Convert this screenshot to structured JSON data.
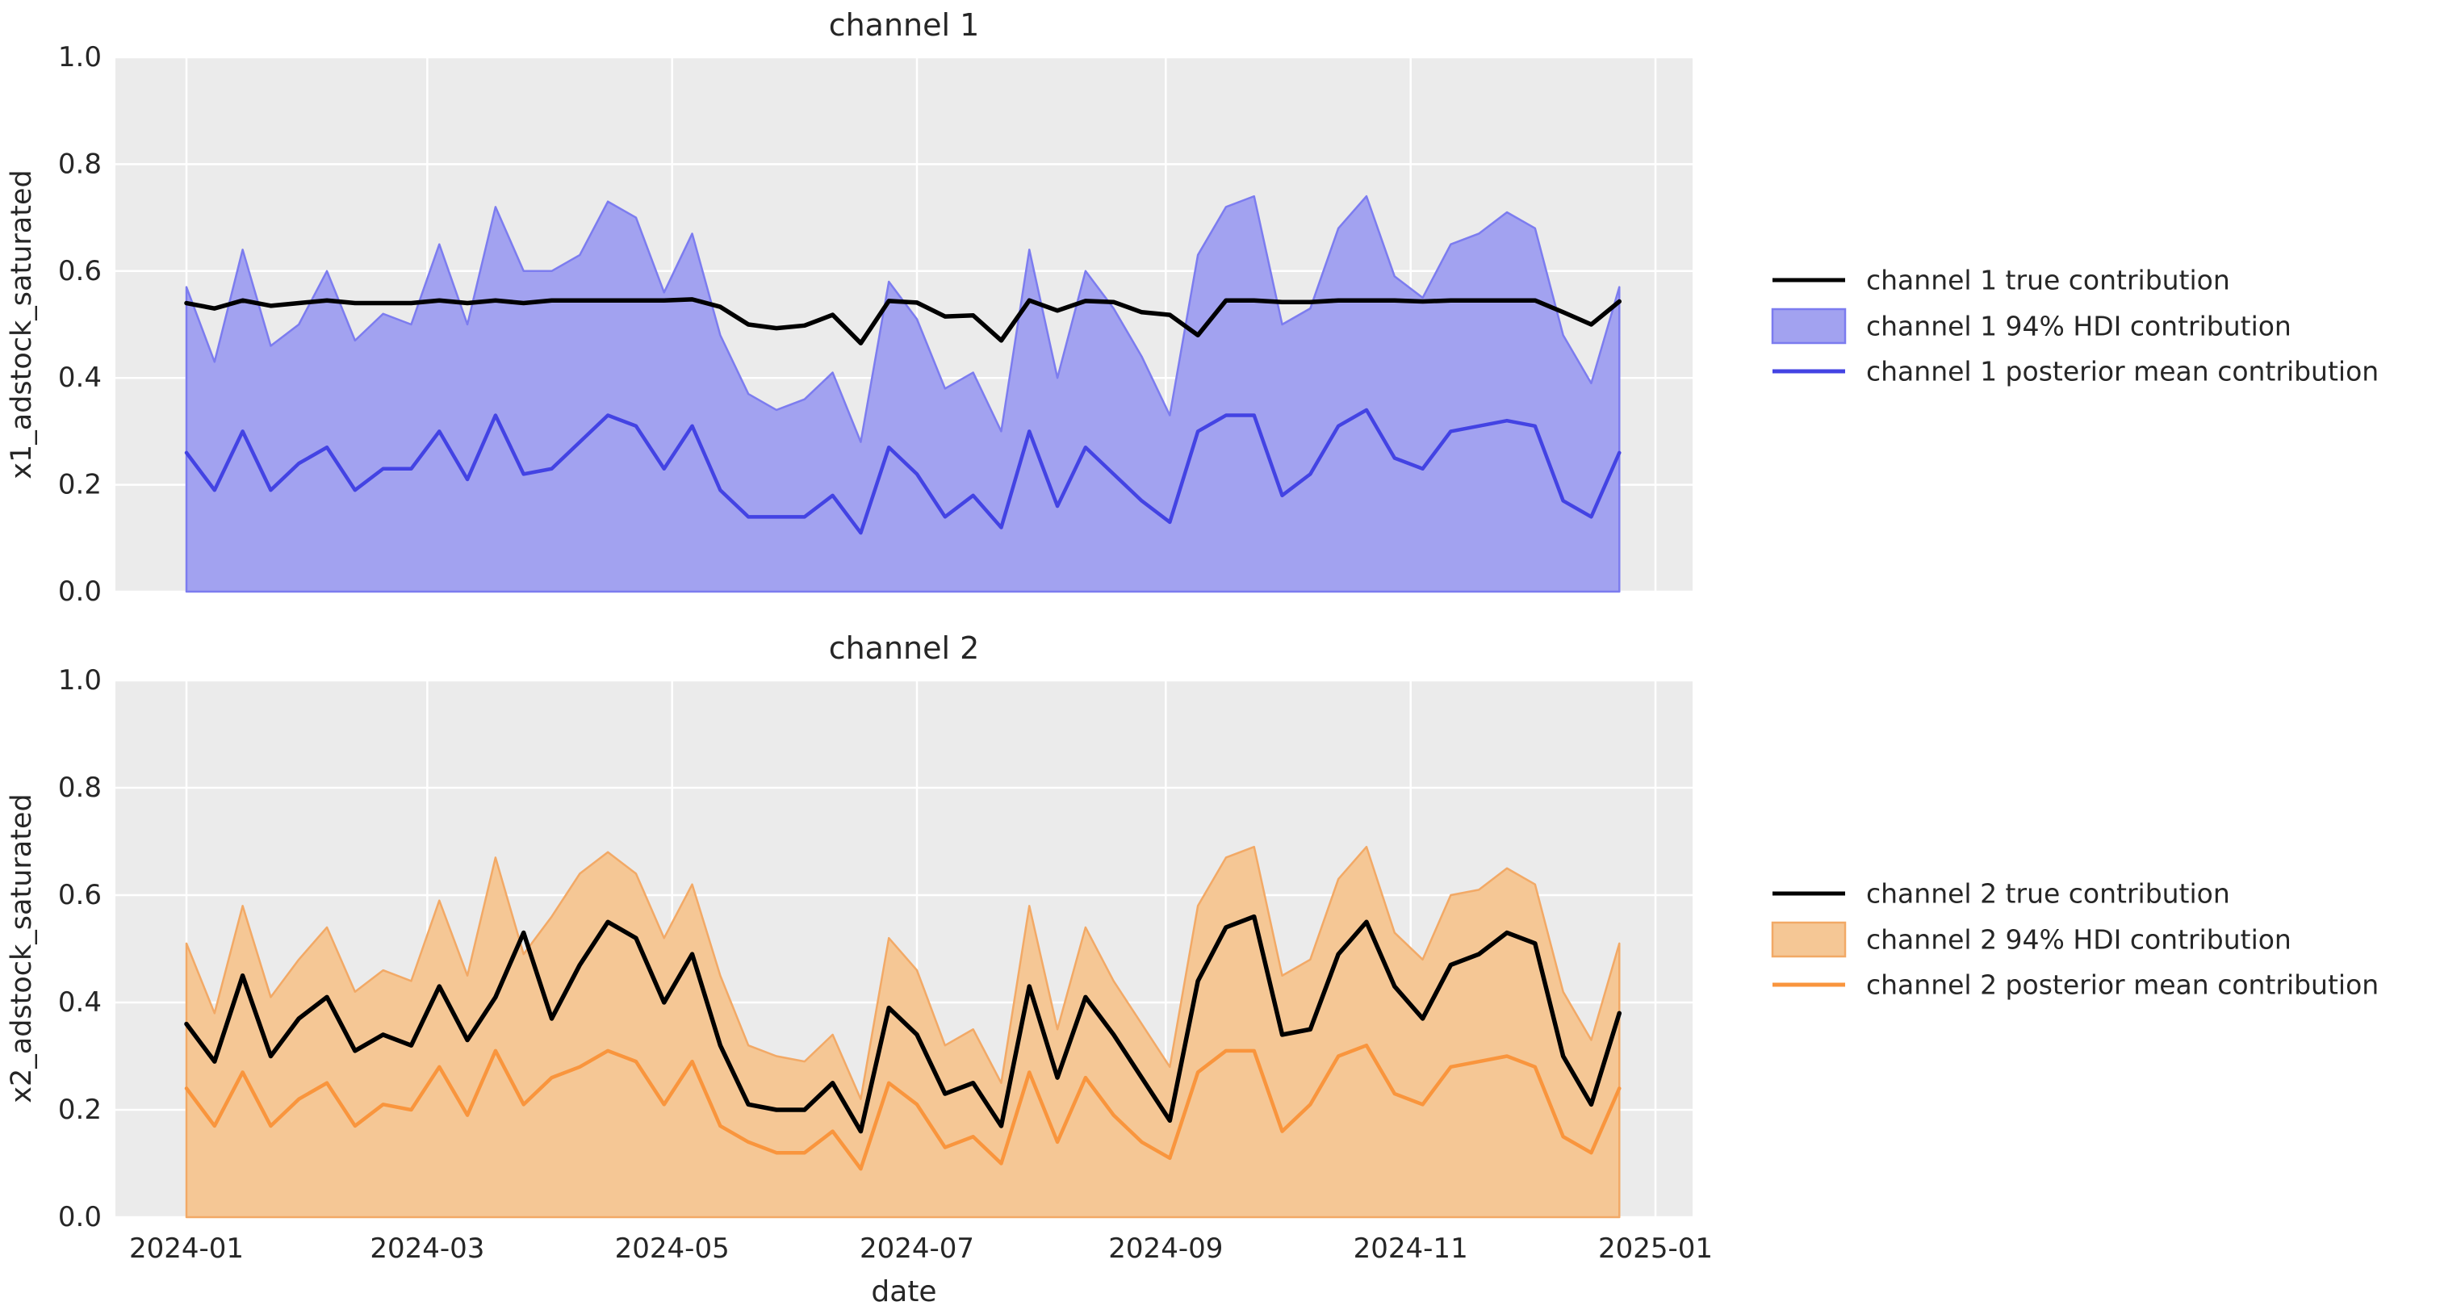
{
  "figure": {
    "background": "#ffffff",
    "axes_background": "#ebebeb",
    "grid_color": "#ffffff",
    "text_color": "#262626"
  },
  "x_axis": {
    "label": "date",
    "tick_labels": [
      "2024-01",
      "2024-03",
      "2024-05",
      "2024-07",
      "2024-09",
      "2024-11",
      "2025-01"
    ],
    "tick_dates": [
      "2024-01-01",
      "2024-03-01",
      "2024-05-01",
      "2024-07-01",
      "2024-09-01",
      "2024-11-01",
      "2025-01-01"
    ]
  },
  "chart_data": [
    {
      "type": "line",
      "title": "channel 1",
      "ylabel": "x1_adstock_saturated",
      "xlabel": "",
      "ylim": [
        0.0,
        1.0
      ],
      "y_ticks": [
        0.0,
        0.2,
        0.4,
        0.6,
        0.8,
        1.0
      ],
      "grid": true,
      "legend_position": "right",
      "hdi_lower_bound": 0.0,
      "x_dates": [
        "2024-01-01",
        "2024-01-08",
        "2024-01-15",
        "2024-01-22",
        "2024-01-29",
        "2024-02-05",
        "2024-02-12",
        "2024-02-19",
        "2024-02-26",
        "2024-03-04",
        "2024-03-11",
        "2024-03-18",
        "2024-03-25",
        "2024-04-01",
        "2024-04-08",
        "2024-04-15",
        "2024-04-22",
        "2024-04-29",
        "2024-05-06",
        "2024-05-13",
        "2024-05-20",
        "2024-05-27",
        "2024-06-03",
        "2024-06-10",
        "2024-06-17",
        "2024-06-24",
        "2024-07-01",
        "2024-07-08",
        "2024-07-15",
        "2024-07-22",
        "2024-07-29",
        "2024-08-05",
        "2024-08-12",
        "2024-08-19",
        "2024-08-26",
        "2024-09-02",
        "2024-09-09",
        "2024-09-16",
        "2024-09-23",
        "2024-09-30",
        "2024-10-07",
        "2024-10-14",
        "2024-10-21",
        "2024-10-28",
        "2024-11-04",
        "2024-11-11",
        "2024-11-18",
        "2024-11-25",
        "2024-12-02",
        "2024-12-09",
        "2024-12-16",
        "2024-12-23"
      ],
      "series": [
        {
          "name": "channel 1 true contribution",
          "kind": "line",
          "color": "#000000",
          "values": [
            0.54,
            0.53,
            0.545,
            0.535,
            0.54,
            0.545,
            0.54,
            0.54,
            0.54,
            0.545,
            0.54,
            0.545,
            0.54,
            0.545,
            0.545,
            0.545,
            0.545,
            0.545,
            0.547,
            0.533,
            0.5,
            0.493,
            0.498,
            0.518,
            0.465,
            0.544,
            0.541,
            0.515,
            0.517,
            0.47,
            0.545,
            0.526,
            0.544,
            0.542,
            0.523,
            0.518,
            0.48,
            0.545,
            0.545,
            0.542,
            0.542,
            0.545,
            0.545,
            0.545,
            0.543,
            0.545,
            0.545,
            0.545,
            0.545,
            0.523,
            0.5,
            0.543
          ]
        },
        {
          "name": "channel 1 94% HDI contribution",
          "kind": "band",
          "fill_color": "#a2a2f0",
          "edge_color": "#7c7cef",
          "lower": 0.0,
          "upper_values": [
            0.57,
            0.43,
            0.64,
            0.46,
            0.5,
            0.6,
            0.47,
            0.52,
            0.5,
            0.65,
            0.5,
            0.72,
            0.6,
            0.6,
            0.63,
            0.73,
            0.7,
            0.56,
            0.67,
            0.48,
            0.37,
            0.34,
            0.36,
            0.41,
            0.28,
            0.58,
            0.51,
            0.38,
            0.41,
            0.3,
            0.64,
            0.4,
            0.6,
            0.53,
            0.44,
            0.33,
            0.63,
            0.72,
            0.74,
            0.5,
            0.53,
            0.68,
            0.74,
            0.59,
            0.55,
            0.65,
            0.67,
            0.71,
            0.68,
            0.48,
            0.39,
            0.57
          ]
        },
        {
          "name": "channel 1 posterior mean contribution",
          "kind": "line",
          "color": "#4343e3",
          "values": [
            0.26,
            0.19,
            0.3,
            0.19,
            0.24,
            0.27,
            0.19,
            0.23,
            0.23,
            0.3,
            0.21,
            0.33,
            0.22,
            0.23,
            0.28,
            0.33,
            0.31,
            0.23,
            0.31,
            0.19,
            0.14,
            0.14,
            0.14,
            0.18,
            0.11,
            0.27,
            0.22,
            0.14,
            0.18,
            0.12,
            0.3,
            0.16,
            0.27,
            0.22,
            0.17,
            0.13,
            0.3,
            0.33,
            0.33,
            0.18,
            0.22,
            0.31,
            0.34,
            0.25,
            0.23,
            0.3,
            0.31,
            0.32,
            0.31,
            0.17,
            0.14,
            0.26
          ]
        }
      ]
    },
    {
      "type": "line",
      "title": "channel 2",
      "ylabel": "x2_adstock_saturated",
      "xlabel": "date",
      "ylim": [
        0.0,
        1.0
      ],
      "y_ticks": [
        0.0,
        0.2,
        0.4,
        0.6,
        0.8,
        1.0
      ],
      "grid": true,
      "legend_position": "right",
      "hdi_lower_bound": 0.0,
      "x_dates": [
        "2024-01-01",
        "2024-01-08",
        "2024-01-15",
        "2024-01-22",
        "2024-01-29",
        "2024-02-05",
        "2024-02-12",
        "2024-02-19",
        "2024-02-26",
        "2024-03-04",
        "2024-03-11",
        "2024-03-18",
        "2024-03-25",
        "2024-04-01",
        "2024-04-08",
        "2024-04-15",
        "2024-04-22",
        "2024-04-29",
        "2024-05-06",
        "2024-05-13",
        "2024-05-20",
        "2024-05-27",
        "2024-06-03",
        "2024-06-10",
        "2024-06-17",
        "2024-06-24",
        "2024-07-01",
        "2024-07-08",
        "2024-07-15",
        "2024-07-22",
        "2024-07-29",
        "2024-08-05",
        "2024-08-12",
        "2024-08-19",
        "2024-08-26",
        "2024-09-02",
        "2024-09-09",
        "2024-09-16",
        "2024-09-23",
        "2024-09-30",
        "2024-10-07",
        "2024-10-14",
        "2024-10-21",
        "2024-10-28",
        "2024-11-04",
        "2024-11-11",
        "2024-11-18",
        "2024-11-25",
        "2024-12-02",
        "2024-12-09",
        "2024-12-16",
        "2024-12-23"
      ],
      "series": [
        {
          "name": "channel 2 true contribution",
          "kind": "line",
          "color": "#000000",
          "values": [
            0.36,
            0.29,
            0.45,
            0.3,
            0.37,
            0.41,
            0.31,
            0.34,
            0.32,
            0.43,
            0.33,
            0.41,
            0.53,
            0.37,
            0.47,
            0.55,
            0.52,
            0.4,
            0.49,
            0.32,
            0.21,
            0.2,
            0.2,
            0.25,
            0.16,
            0.39,
            0.34,
            0.23,
            0.25,
            0.17,
            0.43,
            0.26,
            0.41,
            0.34,
            0.26,
            0.18,
            0.44,
            0.54,
            0.56,
            0.34,
            0.35,
            0.49,
            0.55,
            0.43,
            0.37,
            0.47,
            0.49,
            0.53,
            0.51,
            0.3,
            0.21,
            0.38
          ]
        },
        {
          "name": "channel 2 94% HDI contribution",
          "kind": "band",
          "fill_color": "#f5c795",
          "edge_color": "#f2a966",
          "lower": 0.0,
          "upper_values": [
            0.51,
            0.38,
            0.58,
            0.41,
            0.48,
            0.54,
            0.42,
            0.46,
            0.44,
            0.59,
            0.45,
            0.67,
            0.49,
            0.56,
            0.64,
            0.68,
            0.64,
            0.52,
            0.62,
            0.45,
            0.32,
            0.3,
            0.29,
            0.34,
            0.22,
            0.52,
            0.46,
            0.32,
            0.35,
            0.25,
            0.58,
            0.35,
            0.54,
            0.44,
            0.36,
            0.28,
            0.58,
            0.67,
            0.69,
            0.45,
            0.48,
            0.63,
            0.69,
            0.53,
            0.48,
            0.6,
            0.61,
            0.65,
            0.62,
            0.42,
            0.33,
            0.51
          ]
        },
        {
          "name": "channel 2 posterior mean contribution",
          "kind": "line",
          "color": "#f9953d",
          "values": [
            0.24,
            0.17,
            0.27,
            0.17,
            0.22,
            0.25,
            0.17,
            0.21,
            0.2,
            0.28,
            0.19,
            0.31,
            0.21,
            0.26,
            0.28,
            0.31,
            0.29,
            0.21,
            0.29,
            0.17,
            0.14,
            0.12,
            0.12,
            0.16,
            0.09,
            0.25,
            0.21,
            0.13,
            0.15,
            0.1,
            0.27,
            0.14,
            0.26,
            0.19,
            0.14,
            0.11,
            0.27,
            0.31,
            0.31,
            0.16,
            0.21,
            0.3,
            0.32,
            0.23,
            0.21,
            0.28,
            0.29,
            0.3,
            0.28,
            0.15,
            0.12,
            0.24
          ]
        }
      ]
    }
  ]
}
